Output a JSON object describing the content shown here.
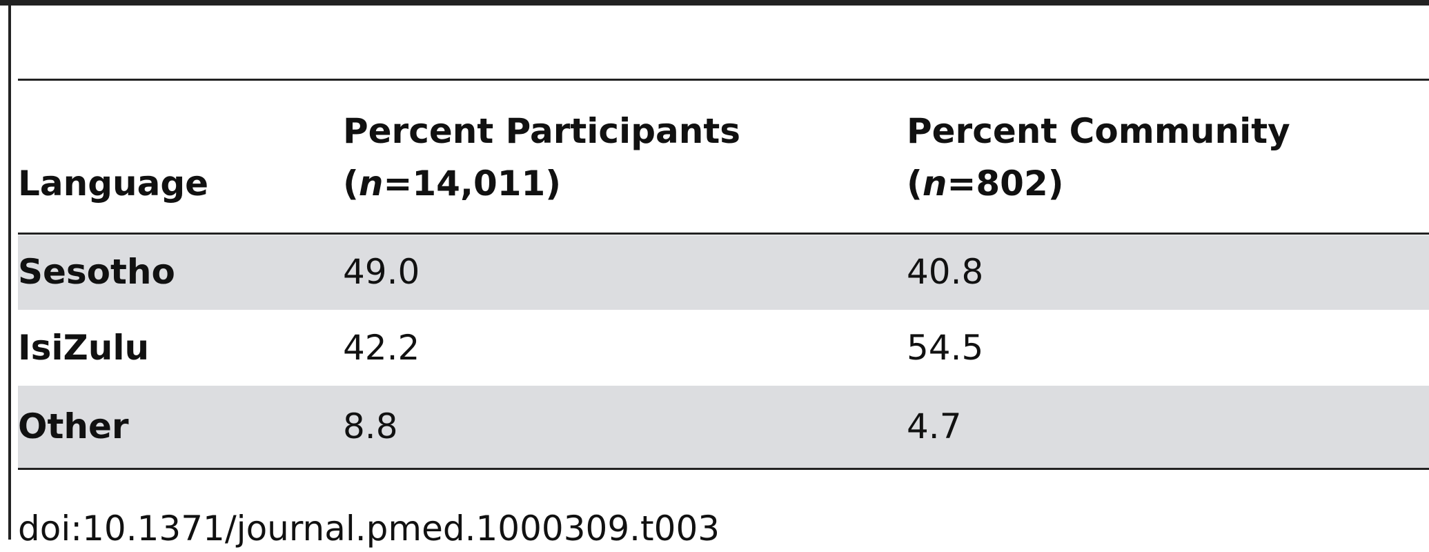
{
  "table": {
    "header": {
      "language": "Language",
      "participants": {
        "line1": "Percent Participants",
        "open": "(",
        "n": "n",
        "rest": "=14,011)"
      },
      "community": {
        "line1": "Percent Community",
        "open": "(",
        "n": "n",
        "rest": "=802)"
      }
    },
    "rows": [
      [
        "Sesotho",
        "49.0",
        "40.8"
      ],
      [
        "IsiZulu",
        "42.2",
        "54.5"
      ],
      [
        "Other",
        "8.8",
        "4.7"
      ]
    ]
  },
  "footer": {
    "doi": "doi:10.1371/journal.pmed.1000309.t003"
  }
}
